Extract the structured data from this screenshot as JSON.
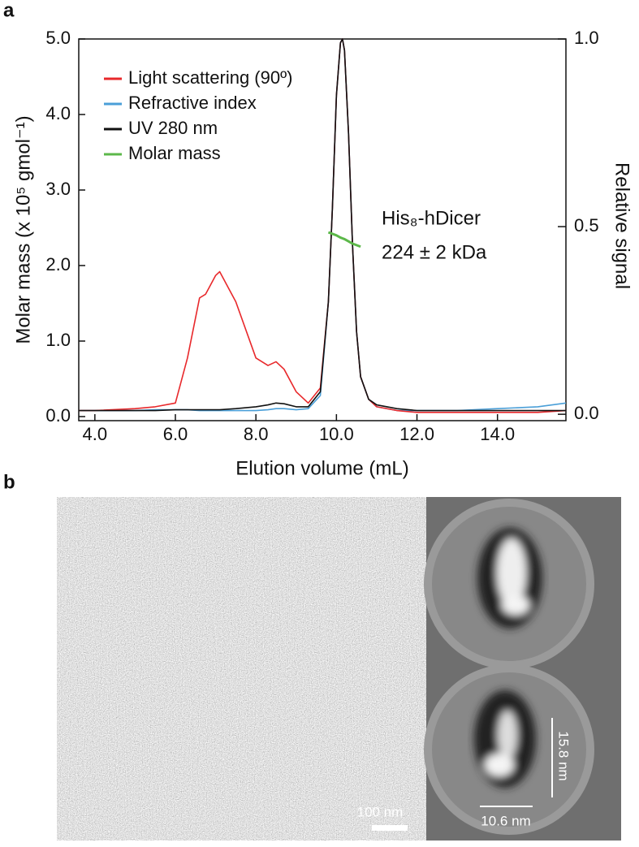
{
  "chart_data": {
    "type": "line",
    "panel_label": "a",
    "xlabel": "Elution volume (mL)",
    "ylabel": "Molar mass (x 10⁵ gmol⁻¹)",
    "y2label": "Relative signal",
    "annotations": [
      "His₈-hDicer",
      "224 ± 2 kDa"
    ],
    "legend": "upper left",
    "xlim": [
      3.6,
      15.7
    ],
    "xticks": [
      {
        "value": 4,
        "label": "4.0"
      },
      {
        "value": 6,
        "label": "6.0"
      },
      {
        "value": 8,
        "label": "8.0"
      },
      {
        "value": 10,
        "label": "10.0"
      },
      {
        "value": 12,
        "label": "12.0"
      },
      {
        "value": 14,
        "label": "14.0"
      }
    ],
    "ylim": [
      -0.054,
      5.0
    ],
    "yticks": [
      {
        "value": 0,
        "label": "0.0"
      },
      {
        "value": 1,
        "label": "1.0"
      },
      {
        "value": 2,
        "label": "2.0"
      },
      {
        "value": 3,
        "label": "3.0"
      },
      {
        "value": 4,
        "label": "4.0"
      },
      {
        "value": 5,
        "label": "5.0"
      }
    ],
    "y2lim": [
      -0.017,
      1.0
    ],
    "y2ticks": [
      {
        "value": 0,
        "label": "0.0"
      },
      {
        "value": 0.5,
        "label": "0.5"
      },
      {
        "value": 1,
        "label": "1.0"
      }
    ],
    "x": [
      3.6,
      4.0,
      5.0,
      5.5,
      6.0,
      6.3,
      6.6,
      6.75,
      7.0,
      7.1,
      7.5,
      8.0,
      8.3,
      8.5,
      8.7,
      9.0,
      9.3,
      9.6,
      9.8,
      9.9,
      10.0,
      10.1,
      10.15,
      10.2,
      10.3,
      10.4,
      10.5,
      10.6,
      10.8,
      11.0,
      11.5,
      12.0,
      13.0,
      14.0,
      15.0,
      15.7
    ],
    "series": [
      {
        "name": "Light scattering (90º)",
        "color": "#e8282b",
        "axis": "y2",
        "values": [
          0.01,
          0.01,
          0.015,
          0.02,
          0.03,
          0.15,
          0.31,
          0.32,
          0.37,
          0.38,
          0.3,
          0.15,
          0.13,
          0.14,
          0.12,
          0.06,
          0.03,
          0.07,
          0.3,
          0.55,
          0.85,
          0.99,
          1.0,
          0.97,
          0.75,
          0.45,
          0.22,
          0.1,
          0.04,
          0.02,
          0.01,
          0.005,
          0.005,
          0.005,
          0.005,
          0.01
        ]
      },
      {
        "name": "Refractive index",
        "color": "#4a9fd8",
        "axis": "y2",
        "values": [
          0.01,
          0.01,
          0.01,
          0.012,
          0.012,
          0.012,
          0.01,
          0.01,
          0.01,
          0.01,
          0.01,
          0.01,
          0.012,
          0.015,
          0.015,
          0.012,
          0.015,
          0.05,
          0.3,
          0.55,
          0.85,
          0.99,
          1.0,
          0.97,
          0.75,
          0.45,
          0.22,
          0.1,
          0.04,
          0.02,
          0.01,
          0.01,
          0.01,
          0.015,
          0.02,
          0.03
        ]
      },
      {
        "name": "UV 280 nm",
        "color": "#111111",
        "axis": "y2",
        "values": [
          0.01,
          0.01,
          0.01,
          0.01,
          0.012,
          0.012,
          0.012,
          0.012,
          0.012,
          0.012,
          0.015,
          0.02,
          0.025,
          0.03,
          0.028,
          0.02,
          0.02,
          0.06,
          0.3,
          0.55,
          0.85,
          0.99,
          1.0,
          0.97,
          0.75,
          0.45,
          0.22,
          0.1,
          0.04,
          0.025,
          0.015,
          0.01,
          0.01,
          0.01,
          0.01,
          0.01
        ]
      },
      {
        "name": "Molar mass",
        "color": "#5cb84a",
        "axis": "y",
        "values": [
          null,
          null,
          null,
          null,
          null,
          null,
          null,
          null,
          null,
          null,
          null,
          null,
          null,
          null,
          null,
          null,
          null,
          null,
          2.44,
          2.42,
          2.4,
          2.37,
          2.36,
          2.35,
          2.32,
          2.29,
          2.27,
          2.25,
          null,
          null,
          null,
          null,
          null,
          null,
          null,
          null
        ]
      }
    ]
  },
  "panel_b": {
    "label": "b",
    "scale_bar": "100 nm",
    "height_label": "15.8 nm",
    "width_label": "10.6 nm"
  }
}
